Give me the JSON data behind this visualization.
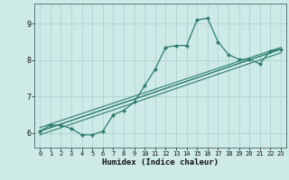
{
  "title": "",
  "xlabel": "Humidex (Indice chaleur)",
  "bg_color": "#cdeae7",
  "line_color": "#2e7d6e",
  "grid_color": "#afd4d0",
  "xmin": -0.5,
  "xmax": 23.5,
  "ymin": 5.6,
  "ymax": 9.55,
  "yticks": [
    6,
    7,
    8,
    9
  ],
  "xticks": [
    0,
    1,
    2,
    3,
    4,
    5,
    6,
    7,
    8,
    9,
    10,
    11,
    12,
    13,
    14,
    15,
    16,
    17,
    18,
    19,
    20,
    21,
    22,
    23
  ],
  "main_x": [
    0,
    1,
    2,
    3,
    4,
    5,
    6,
    7,
    8,
    9,
    10,
    11,
    12,
    13,
    14,
    15,
    16,
    17,
    18,
    19,
    20,
    21,
    22,
    23
  ],
  "main_y": [
    6.05,
    6.22,
    6.22,
    6.12,
    5.95,
    5.95,
    6.05,
    6.5,
    6.62,
    6.85,
    7.3,
    7.75,
    8.35,
    8.4,
    8.4,
    9.1,
    9.15,
    8.5,
    8.15,
    8.02,
    8.02,
    7.9,
    8.25,
    8.3
  ],
  "line2_x": [
    0,
    23
  ],
  "line2_y": [
    6.05,
    8.3
  ],
  "line3_x": [
    0,
    23
  ],
  "line3_y": [
    6.05,
    8.3
  ],
  "line4_x": [
    0,
    23
  ],
  "line4_y": [
    6.15,
    8.35
  ],
  "line5_x": [
    0,
    23
  ],
  "line5_y": [
    5.95,
    8.2
  ]
}
